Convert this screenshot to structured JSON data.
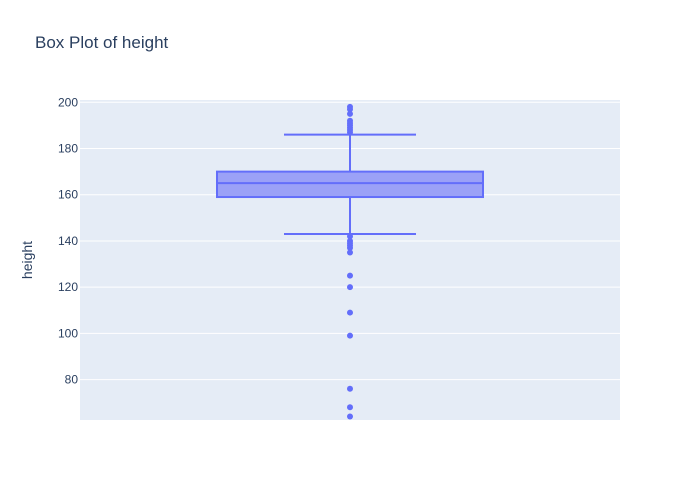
{
  "chart_data": {
    "type": "box",
    "title": "Box Plot of height",
    "xlabel": "",
    "ylabel": "height",
    "ylim": [
      62.5,
      201
    ],
    "yticks": [
      60,
      80,
      100,
      120,
      140,
      160,
      180,
      200
    ],
    "grid": true,
    "box": {
      "lower_fence": 143,
      "q1": 159,
      "median": 165,
      "q3": 170,
      "upper_fence": 186,
      "outliers": [
        198,
        197,
        195,
        192,
        191,
        190,
        189,
        188,
        187,
        142,
        140,
        139,
        138,
        137,
        135,
        125,
        120,
        109,
        99,
        76,
        68,
        64
      ]
    },
    "colors": {
      "plot_bg": "#e5ecf6",
      "grid": "#ffffff",
      "box_line": "#636efa",
      "box_fill": "#9ba1f7",
      "text": "#2a3f5f"
    }
  }
}
